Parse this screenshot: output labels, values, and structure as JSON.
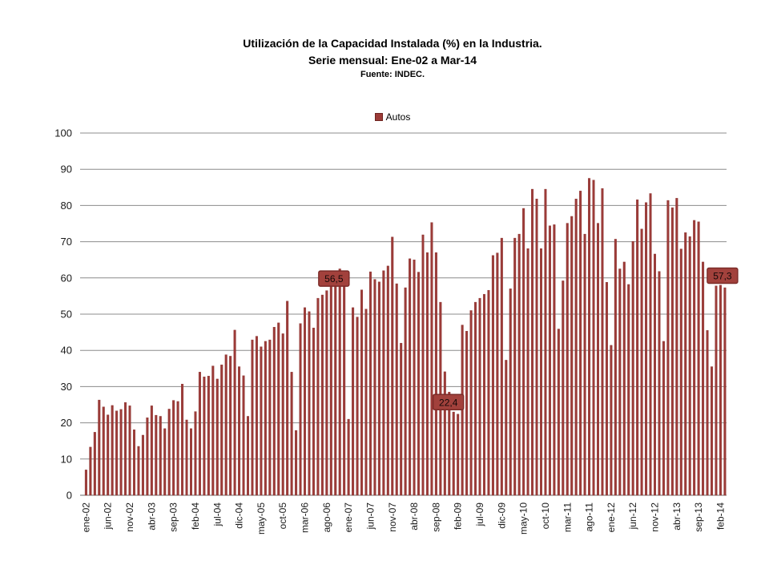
{
  "slide": {
    "title_line1": "Utilización de la Capacidad Instalada (%) en la Industria.",
    "title_line2": "Serie mensual: Ene-02 a Mar-14",
    "title_line3": "Fuente: INDEC."
  },
  "legend": {
    "label": "Autos"
  },
  "colors": {
    "bar": "#9C3B38",
    "bar_border": "#8A322F",
    "gridline": "#8C8C8C",
    "axis_line": "#6B6B6B",
    "tick_text": "#1A1A1A",
    "annotation_fill": "#A2413C",
    "annotation_border": "#7B2B28",
    "annotation_text": "#140808",
    "background": "#FFFFFF"
  },
  "chart_data": {
    "type": "bar",
    "series_name": "Autos",
    "unit": "%",
    "x_start": "ene-02",
    "x_end": "mar-14",
    "n_months": 147,
    "x_tick_every": 5,
    "x_tick_labels": [
      "ene-02",
      "jun-02",
      "nov-02",
      "abr-03",
      "sep-03",
      "feb-04",
      "jul-04",
      "dic-04",
      "may-05",
      "oct-05",
      "mar-06",
      "ago-06",
      "ene-07",
      "jun-07",
      "nov-07",
      "abr-08",
      "sep-08",
      "feb-09",
      "jul-09",
      "dic-09",
      "may-10",
      "oct-10",
      "mar-11",
      "ago-11",
      "ene-12",
      "jun-12",
      "nov-12",
      "abr-13",
      "sep-13",
      "feb-14"
    ],
    "month_abbr": [
      "ene",
      "feb",
      "mar",
      "abr",
      "may",
      "jun",
      "jul",
      "ago",
      "sep",
      "oct",
      "nov",
      "dic"
    ],
    "y_ticks": [
      0,
      10,
      20,
      30,
      40,
      50,
      60,
      70,
      80,
      90,
      100
    ],
    "ylim": [
      0,
      100
    ],
    "grid": "horizontal",
    "legend_position": "top-center",
    "values": [
      7.0,
      13.3,
      17.4,
      26.3,
      24.4,
      22.2,
      24.8,
      23.3,
      23.7,
      25.6,
      24.7,
      18.1,
      13.5,
      16.6,
      21.4,
      24.7,
      22.1,
      21.8,
      18.4,
      23.8,
      26.2,
      25.9,
      30.7,
      20.8,
      18.4,
      23.1,
      34.0,
      32.7,
      32.9,
      35.7,
      32.1,
      36.0,
      38.8,
      38.4,
      45.6,
      35.5,
      33.0,
      21.8,
      42.9,
      43.9,
      41.0,
      42.5,
      42.9,
      46.4,
      47.6,
      44.6,
      53.6,
      34.0,
      17.9,
      47.4,
      51.8,
      50.7,
      46.2,
      54.4,
      55.3,
      56.5,
      57.7,
      58.8,
      62.5,
      57.9,
      21.0,
      51.8,
      49.2,
      56.7,
      51.4,
      61.7,
      59.6,
      58.9,
      62.0,
      63.3,
      71.3,
      58.4,
      42.0,
      57.3,
      65.3,
      65.0,
      61.6,
      71.9,
      67.0,
      75.3,
      67.0,
      53.3,
      34.1,
      28.5,
      23.0,
      22.4,
      47.0,
      45.3,
      51.0,
      53.3,
      54.4,
      55.5,
      56.6,
      66.2,
      66.9,
      71.0,
      37.3,
      57.0,
      71.0,
      72.1,
      79.2,
      68.1,
      84.5,
      81.8,
      68.1,
      84.5,
      74.4,
      74.7,
      45.9,
      59.2,
      75.1,
      77.0,
      81.8,
      84.0,
      72.1,
      87.5,
      87.0,
      75.1,
      84.7,
      58.8,
      41.4,
      70.7,
      62.5,
      64.4,
      58.2,
      70.1,
      81.6,
      73.5,
      80.8,
      83.3,
      66.6,
      61.8,
      42.5,
      81.4,
      79.4,
      82.0,
      68.0,
      72.5,
      71.4,
      75.9,
      75.5,
      64.4,
      45.5,
      35.5,
      57.8,
      58.0,
      57.3
    ],
    "annotations": [
      {
        "text": "56,5",
        "month": "ago-06",
        "index": 55,
        "value": 56.5
      },
      {
        "text": "22,4",
        "month": "feb-09",
        "index": 85,
        "value": 22.4
      },
      {
        "text": "57,3",
        "month": "mar-14",
        "index": 146,
        "value": 57.3
      }
    ]
  }
}
